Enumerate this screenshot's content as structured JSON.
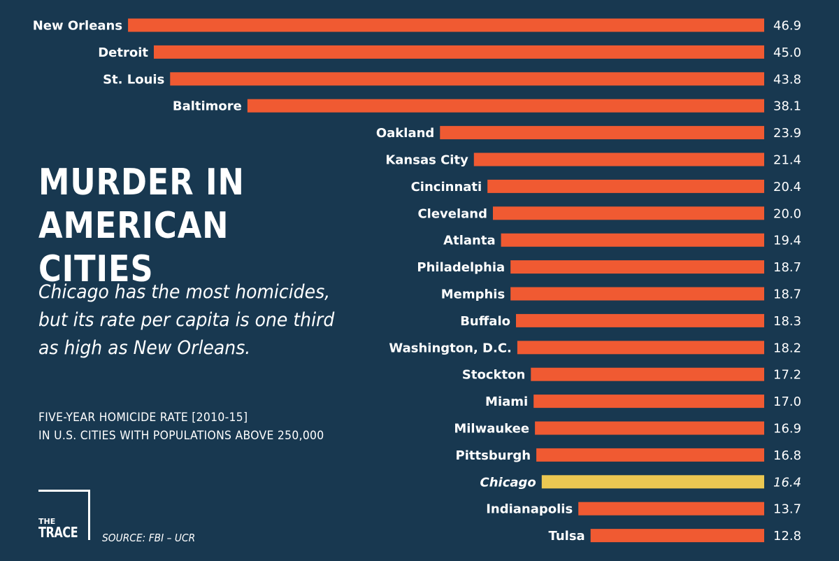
{
  "title": "MURDER IN AMERICAN CITIES",
  "subtitle": "Chicago has the most homicides, but its rate per capita is one third as high as New Orleans.",
  "note_lines": [
    "FIVE-YEAR HOMICIDE RATE [2010-15]",
    "IN U.S. CITIES WITH POPULATIONS ABOVE 250,000"
  ],
  "source": "SOURCE: FBI – UCR",
  "logo": {
    "line1": "THE",
    "line2": "TRACE"
  },
  "colors": {
    "background": "#183850",
    "bar": "#f05a32",
    "highlight_bar": "#ecc852",
    "text": "#ffffff"
  },
  "chart_data": {
    "type": "bar",
    "orientation": "horizontal",
    "highlight_category": "Chicago",
    "categories": [
      "New Orleans",
      "Detroit",
      "St. Louis",
      "Baltimore",
      "Oakland",
      "Kansas City",
      "Cincinnati",
      "Cleveland",
      "Atlanta",
      "Philadelphia",
      "Memphis",
      "Buffalo",
      "Washington, D.C.",
      "Stockton",
      "Miami",
      "Milwaukee",
      "Pittsburgh",
      "Chicago",
      "Indianapolis",
      "Tulsa"
    ],
    "values": [
      46.9,
      45.0,
      43.8,
      38.1,
      23.9,
      21.4,
      20.4,
      20.0,
      19.4,
      18.7,
      18.7,
      18.3,
      18.2,
      17.2,
      17.0,
      16.9,
      16.8,
      16.4,
      13.7,
      12.8
    ],
    "value_labels": [
      "46.9",
      "45.0",
      "43.8",
      "38.1",
      "23.9",
      "21.4",
      "20.4",
      "20.0",
      "19.4",
      "18.7",
      "18.7",
      "18.3",
      "18.2",
      "17.2",
      "17.0",
      "16.9",
      "16.8",
      "16.4",
      "13.7",
      "12.8"
    ],
    "title": "MURDER IN AMERICAN CITIES",
    "xlabel": "",
    "ylabel": "",
    "xlim": [
      0,
      46.9
    ],
    "grid": false,
    "legend": "none"
  }
}
